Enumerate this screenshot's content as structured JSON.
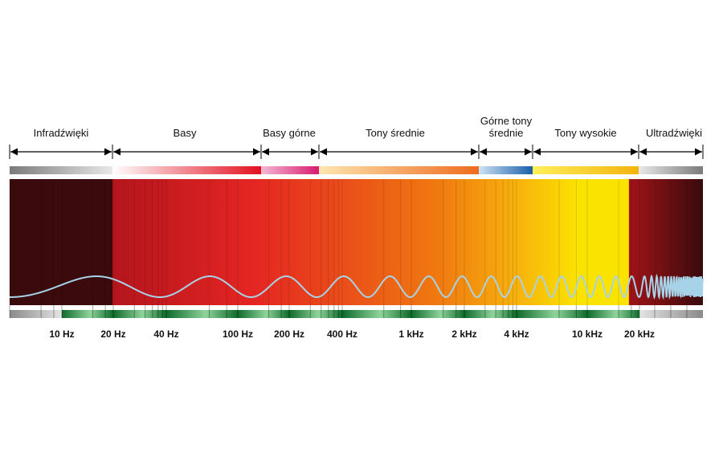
{
  "ranges": [
    {
      "label": "Infradźwięki",
      "band_colors": [
        "#7a7a7a",
        "#e8e8e8"
      ]
    },
    {
      "label": "Basy",
      "band_colors": [
        "#ffffff",
        "#e3101f"
      ]
    },
    {
      "label": "Basy górne",
      "band_colors": [
        "#f4b8d4",
        "#d81b6f"
      ]
    },
    {
      "label": "Tony średnie",
      "band_colors": [
        "#fde6b0",
        "#ee6b1f"
      ]
    },
    {
      "label_lines": [
        "Górne tony",
        "średnie"
      ],
      "band_colors": [
        "#cde3f5",
        "#1a5ea8"
      ]
    },
    {
      "label": "Tony wysokie",
      "band_colors": [
        "#ffef5a",
        "#f2b40c"
      ]
    },
    {
      "label": "Ultradźwięki",
      "band_colors": [
        "#e8e8e8",
        "#7a7a7a"
      ]
    }
  ],
  "frequency_labels": [
    "10 Hz",
    "20 Hz",
    "40 Hz",
    "100 Hz",
    "200 Hz",
    "400 Hz",
    "1 kHz",
    "2 kHz",
    "4 kHz",
    "10 kHz",
    "20 kHz"
  ],
  "spectrum_colors": {
    "infra": "#3a0a0c",
    "bass_start": "#b4151d",
    "bass_end": "#e42522",
    "mid": "#f07a10",
    "upper_mid": "#f8b60c",
    "treble": "#fbe300",
    "ultra_start": "#a01418",
    "ultra_end": "#3a0a0c"
  },
  "wave_color": "#a7d3e8",
  "axis_band_colors": [
    "#0e6b2b",
    "#8fd39b"
  ]
}
